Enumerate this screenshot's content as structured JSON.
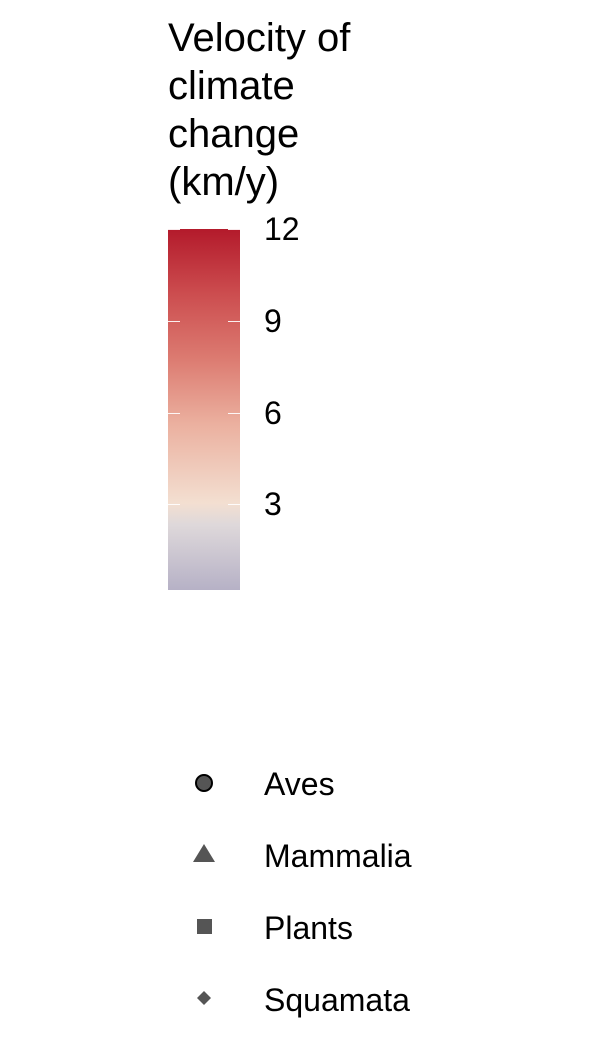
{
  "chart_data": {
    "type": "legend",
    "colorbar": {
      "title": "Velocity of\nclimate\nchange\n(km/y)",
      "ticks": [
        3,
        6,
        9,
        12
      ],
      "tick_labels": [
        "3",
        "6",
        "9",
        "12"
      ],
      "range": [
        0.2,
        12
      ],
      "colors": [
        "#b6b1c6",
        "#f3dfd1",
        "#b31a2b"
      ]
    },
    "shape_legend": [
      {
        "label": "Aves",
        "shape": "circle-icon",
        "color": "#555555"
      },
      {
        "label": "Mammalia",
        "shape": "triangle-icon",
        "color": "#555555"
      },
      {
        "label": "Plants",
        "shape": "square-icon",
        "color": "#555555"
      },
      {
        "label": "Squamata",
        "shape": "diamond-icon",
        "color": "#555555"
      }
    ]
  }
}
